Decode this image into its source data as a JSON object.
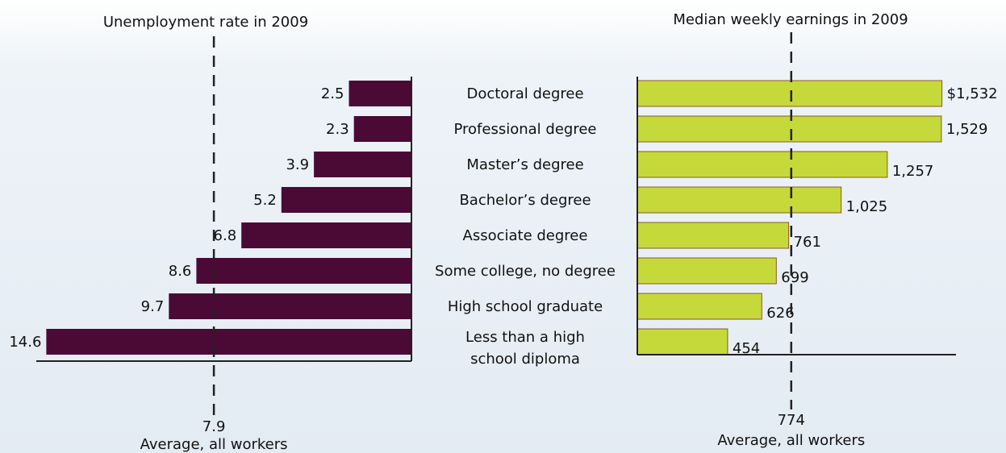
{
  "chart_data": {
    "type": "bar",
    "categories": [
      "Doctoral degree",
      "Professional degree",
      "Master’s degree",
      "Bachelor’s degree",
      "Associate degree",
      "Some college, no degree",
      "High school graduate",
      [
        "Less than a high",
        "school diploma"
      ]
    ],
    "series": [
      {
        "name": "Unemployment rate in 2009",
        "color": "#4a0a35",
        "direction": "left",
        "values": [
          2.5,
          2.3,
          3.9,
          5.2,
          6.8,
          8.6,
          9.7,
          14.6
        ],
        "average": 7.9,
        "average_label": "Average, all workers"
      },
      {
        "name": "Median weekly earnings in 2009",
        "color": "#c5d93b",
        "direction": "right",
        "values": [
          1532,
          1529,
          1257,
          1025,
          761,
          699,
          626,
          454
        ],
        "value_labels": [
          "$1,532",
          "1,529",
          "1,257",
          "1,025",
          "761",
          "699",
          "626",
          "454"
        ],
        "average": 774,
        "average_label": "Average, all workers"
      }
    ]
  }
}
